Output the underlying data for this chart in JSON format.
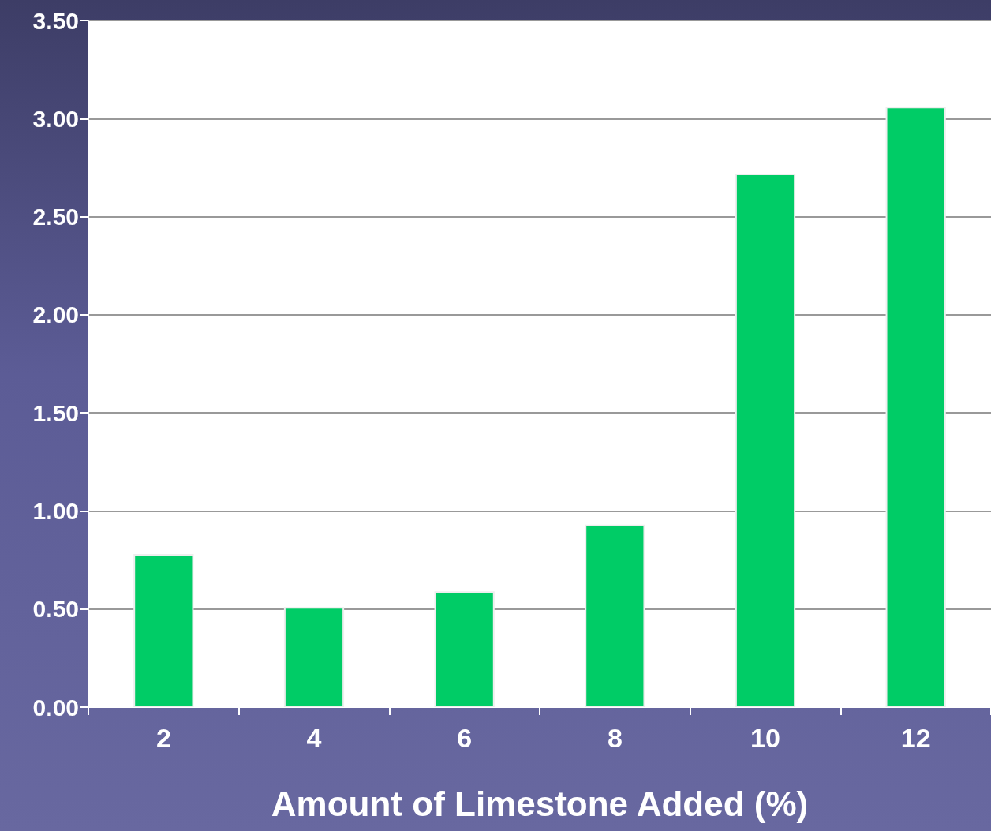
{
  "chart_data": {
    "type": "bar",
    "xlabel": "Amount of Limestone Added (%)",
    "categories": [
      "2",
      "4",
      "6",
      "8",
      "10",
      "12"
    ],
    "values": [
      0.78,
      0.51,
      0.59,
      0.93,
      2.72,
      3.06
    ],
    "color": "#00cc66",
    "ylim": [
      0,
      3.5
    ],
    "yticks": [
      {
        "value": 0,
        "label": "0.00"
      },
      {
        "value": 0.5,
        "label": "0.50"
      },
      {
        "value": 1,
        "label": "1.00"
      },
      {
        "value": 1.5,
        "label": "1.50"
      },
      {
        "value": 2,
        "label": "2.00"
      },
      {
        "value": 2.5,
        "label": "2.50"
      },
      {
        "value": 3,
        "label": "3.00"
      },
      {
        "value": 3.5,
        "label": "3.50"
      }
    ],
    "grid": "y"
  }
}
